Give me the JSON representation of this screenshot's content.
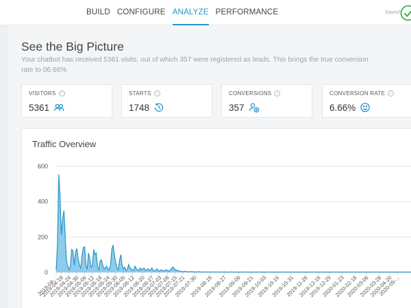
{
  "nav": {
    "items": [
      {
        "label": "BUILD",
        "active": false
      },
      {
        "label": "CONFIGURE",
        "active": false
      },
      {
        "label": "ANALYZE",
        "active": true
      },
      {
        "label": "PERFORMANCE",
        "active": false
      }
    ],
    "saved_label": "Saved"
  },
  "page": {
    "title": "See the Big Picture",
    "description": "Your chatbot has received 5361 visits, out of which 357 were registered as leads. This brings the true conversion rate to 06.66%"
  },
  "stats": [
    {
      "label": "VISITORS",
      "value": "5361",
      "icon": "users-icon"
    },
    {
      "label": "STARTS",
      "value": "1748",
      "icon": "history-icon"
    },
    {
      "label": "CONVERSIONS",
      "value": "357",
      "icon": "user-add-icon"
    },
    {
      "label": "CONVERSION RATE",
      "value": "6.66%",
      "icon": "smile-icon"
    }
  ],
  "colors": {
    "accent": "#2a93c9",
    "area_fill": "#8fcbea",
    "check": "#3cb043"
  },
  "chart_data": {
    "type": "area",
    "title": "Traffic Overview",
    "ylim": [
      0,
      600
    ],
    "y_ticks": [
      0,
      200,
      400,
      600
    ],
    "grid": true,
    "x_tick_labels": [
      "2019-04-...",
      "2019-04-18",
      "2019-04-24",
      "2019-04-30",
      "2019-05-06",
      "2019-05-12",
      "2019-05-18",
      "2019-05-24",
      "2019-05-30",
      "2019-06-05",
      "2019-06-12",
      "2019-06-20",
      "2019-06-27",
      "2019-07-03",
      "2019-07-09",
      "2019-07-15",
      "2019-07-21",
      "2019-07-30",
      "2019-08-16",
      "2019-08-27",
      "2019-09-09",
      "2019-09-21",
      "2019-10-03",
      "2019-10-16",
      "2019-10-31",
      "2019-11-26",
      "2019-12-16",
      "2019-12-29",
      "2020-01-23",
      "2020-02-18",
      "2020-03-06",
      "2020-03-28",
      "2020-04-20",
      "2020-05-..."
    ],
    "x_tick_index": [
      0,
      4,
      10,
      16,
      22,
      28,
      34,
      40,
      46,
      52,
      59,
      67,
      74,
      80,
      86,
      92,
      98,
      107,
      119,
      130,
      141,
      151,
      161,
      171,
      182,
      193,
      203,
      211,
      221,
      231,
      240,
      250,
      258,
      264
    ],
    "values": [
      12,
      160,
      555,
      430,
      210,
      300,
      350,
      200,
      65,
      35,
      15,
      35,
      130,
      120,
      40,
      115,
      135,
      80,
      40,
      25,
      95,
      140,
      145,
      40,
      18,
      110,
      75,
      30,
      38,
      130,
      100,
      110,
      30,
      15,
      65,
      70,
      40,
      20,
      25,
      35,
      20,
      15,
      40,
      130,
      155,
      100,
      55,
      25,
      15,
      70,
      100,
      40,
      20,
      30,
      10,
      15,
      45,
      25,
      20,
      10,
      15,
      35,
      20,
      15,
      10,
      25,
      15,
      20,
      25,
      10,
      15,
      20,
      10,
      15,
      25,
      10,
      8,
      12,
      20,
      10,
      8,
      15,
      12,
      8,
      10,
      15,
      10,
      8,
      12,
      20,
      30,
      25,
      15,
      10,
      12,
      8,
      6,
      5,
      4,
      6,
      5,
      4,
      3,
      4,
      5,
      3,
      4,
      3,
      2,
      3,
      4,
      3,
      2,
      3,
      2,
      3,
      2,
      2,
      3,
      2,
      2,
      3,
      2,
      2,
      2,
      3,
      2,
      2,
      2,
      2,
      3,
      2,
      2,
      2,
      2,
      2,
      3,
      2,
      2,
      2,
      2,
      2,
      2,
      2,
      3,
      2,
      2,
      2,
      2,
      2,
      2,
      2,
      2,
      2,
      2,
      2,
      2,
      3,
      2,
      2,
      2,
      2,
      2,
      2,
      2,
      2,
      2,
      2,
      2,
      2,
      2,
      2,
      2,
      2,
      2,
      2,
      2,
      2,
      2,
      2,
      2,
      2,
      2,
      2,
      2,
      2,
      2,
      2,
      2,
      2,
      2,
      2,
      2,
      2,
      2,
      2,
      2,
      2,
      2,
      2,
      2,
      2,
      2,
      2,
      2,
      2,
      2,
      2,
      2,
      2,
      2,
      2,
      2,
      2,
      2,
      2,
      2,
      2,
      2,
      2,
      2,
      2,
      2,
      2,
      2,
      2,
      2,
      2,
      2,
      2,
      2,
      2,
      2,
      2,
      2,
      2,
      2,
      2,
      2,
      2,
      2,
      2,
      2,
      2,
      2,
      2,
      2,
      2,
      2,
      2,
      2,
      2,
      2,
      2,
      2,
      2,
      2,
      2,
      2,
      2,
      2,
      2,
      2,
      2,
      2,
      2,
      2,
      2,
      2,
      2,
      2,
      2,
      2,
      2,
      2,
      2,
      2,
      2,
      2
    ]
  }
}
